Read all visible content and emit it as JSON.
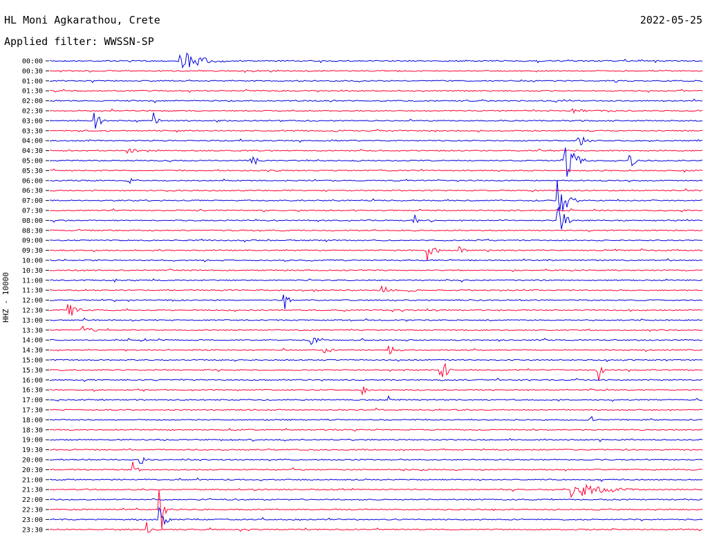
{
  "header": {
    "station": "HL Moni Agkarathou, Crete",
    "filter": "Applied filter: WWSSN-SP",
    "date": "2022-05-25",
    "channel": "HHZ - 10000"
  },
  "colors": {
    "odd_trace": "#0000dd",
    "even_trace": "#ff0033"
  },
  "chart_data": {
    "type": "line",
    "title": "HL Moni Agkarathou, Crete",
    "subtitle": "Applied filter: WWSSN-SP",
    "ylabel": "HHZ - 10000",
    "tick_labels": [
      "00:00",
      "00:30",
      "01:00",
      "01:30",
      "02:00",
      "02:30",
      "03:00",
      "03:30",
      "04:00",
      "04:30",
      "05:00",
      "05:30",
      "06:00",
      "06:30",
      "07:00",
      "07:30",
      "08:00",
      "08:30",
      "09:00",
      "09:30",
      "10:00",
      "10:30",
      "11:00",
      "11:30",
      "12:00",
      "12:30",
      "13:00",
      "13:30",
      "14:00",
      "14:30",
      "15:00",
      "15:30",
      "16:00",
      "16:30",
      "17:00",
      "17:30",
      "18:00",
      "18:30",
      "19:00",
      "19:30",
      "20:00",
      "20:30",
      "21:00",
      "21:30",
      "22:00",
      "22:30",
      "23:00",
      "23:30"
    ],
    "events": [
      {
        "trace": "00:00",
        "pos": 0.2,
        "amp": 18,
        "dur": 0.07
      },
      {
        "trace": "02:00",
        "pos": 0.43,
        "amp": 7,
        "dur": 0.01
      },
      {
        "trace": "02:30",
        "pos": 0.8,
        "amp": 3,
        "dur": 0.12
      },
      {
        "trace": "03:00",
        "pos": 0.07,
        "amp": 14,
        "dur": 0.02
      },
      {
        "trace": "03:00",
        "pos": 0.16,
        "amp": 12,
        "dur": 0.01
      },
      {
        "trace": "03:30",
        "pos": 0.43,
        "amp": 5,
        "dur": 0.02
      },
      {
        "trace": "04:00",
        "pos": 0.81,
        "amp": 12,
        "dur": 0.02
      },
      {
        "trace": "04:30",
        "pos": 0.12,
        "amp": 5,
        "dur": 0.05
      },
      {
        "trace": "05:00",
        "pos": 0.31,
        "amp": 11,
        "dur": 0.02
      },
      {
        "trace": "05:00",
        "pos": 0.79,
        "amp": 34,
        "dur": 0.03
      },
      {
        "trace": "05:00",
        "pos": 0.89,
        "amp": 10,
        "dur": 0.02
      },
      {
        "trace": "06:00",
        "pos": 0.12,
        "amp": 6,
        "dur": 0.02
      },
      {
        "trace": "07:00",
        "pos": 0.78,
        "amp": 30,
        "dur": 0.03
      },
      {
        "trace": "08:00",
        "pos": 0.56,
        "amp": 9,
        "dur": 0.01
      },
      {
        "trace": "08:00",
        "pos": 0.78,
        "amp": 30,
        "dur": 0.02
      },
      {
        "trace": "09:30",
        "pos": 0.58,
        "amp": 16,
        "dur": 0.02
      },
      {
        "trace": "09:30",
        "pos": 0.63,
        "amp": 6,
        "dur": 0.01
      },
      {
        "trace": "11:30",
        "pos": 0.51,
        "amp": 10,
        "dur": 0.02
      },
      {
        "trace": "11:30",
        "pos": 0.55,
        "amp": 5,
        "dur": 0.03
      },
      {
        "trace": "12:00",
        "pos": 0.36,
        "amp": 18,
        "dur": 0.01
      },
      {
        "trace": "12:30",
        "pos": 0.03,
        "amp": 14,
        "dur": 0.02
      },
      {
        "trace": "13:30",
        "pos": 0.05,
        "amp": 8,
        "dur": 0.03
      },
      {
        "trace": "14:00",
        "pos": 0.4,
        "amp": 9,
        "dur": 0.03
      },
      {
        "trace": "14:30",
        "pos": 0.42,
        "amp": 5,
        "dur": 0.03
      },
      {
        "trace": "14:30",
        "pos": 0.52,
        "amp": 6,
        "dur": 0.03
      },
      {
        "trace": "15:30",
        "pos": 0.6,
        "amp": 20,
        "dur": 0.02
      },
      {
        "trace": "15:30",
        "pos": 0.84,
        "amp": 26,
        "dur": 0.01
      },
      {
        "trace": "16:30",
        "pos": 0.48,
        "amp": 8,
        "dur": 0.01
      },
      {
        "trace": "17:00",
        "pos": 0.52,
        "amp": 8,
        "dur": 0.01
      },
      {
        "trace": "18:00",
        "pos": 0.83,
        "amp": 6,
        "dur": 0.01
      },
      {
        "trace": "20:00",
        "pos": 0.14,
        "amp": 6,
        "dur": 0.02
      },
      {
        "trace": "20:30",
        "pos": 0.13,
        "amp": 12,
        "dur": 0.01
      },
      {
        "trace": "21:30",
        "pos": 0.8,
        "amp": 14,
        "dur": 0.1
      },
      {
        "trace": "22:30",
        "pos": 0.17,
        "amp": 40,
        "dur": 0.01
      },
      {
        "trace": "23:00",
        "pos": 0.17,
        "amp": 18,
        "dur": 0.02
      },
      {
        "trace": "23:30",
        "pos": 0.15,
        "amp": 14,
        "dur": 0.01
      }
    ]
  }
}
